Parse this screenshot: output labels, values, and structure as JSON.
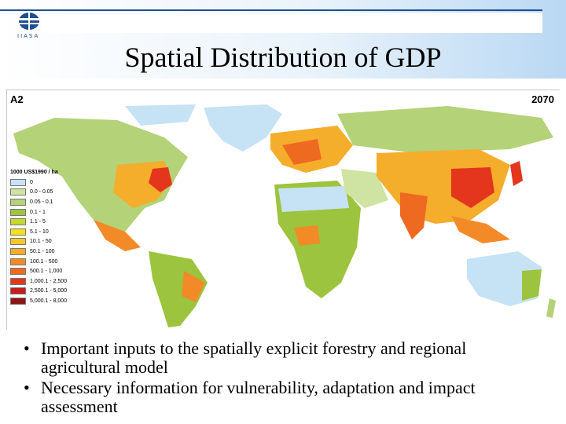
{
  "slide": {
    "title": "Spatial Distribution of GDP",
    "logo_text": "IIASA"
  },
  "map": {
    "scenario": "A2",
    "year": "2070",
    "legend_title": "1000 US$1990 / ha",
    "legend": [
      {
        "label": "0",
        "color": "#c6e2f5"
      },
      {
        "label": "0.0 - 0.05",
        "color": "#cfe3a2"
      },
      {
        "label": "0.05 - 0.1",
        "color": "#b4d277"
      },
      {
        "label": "0.1 - 1",
        "color": "#9cc43e"
      },
      {
        "label": "1.1 - 5",
        "color": "#c6d92a"
      },
      {
        "label": "5.1 - 10",
        "color": "#f3e11b"
      },
      {
        "label": "10.1 - 50",
        "color": "#f7c72a"
      },
      {
        "label": "50.1 - 100",
        "color": "#f5ad2c"
      },
      {
        "label": "100.1 - 500",
        "color": "#f38a28"
      },
      {
        "label": "500.1 - 1,000",
        "color": "#ef6a21"
      },
      {
        "label": "1,000.1 - 2,500",
        "color": "#e3361c"
      },
      {
        "label": "2,500.1 - 5,000",
        "color": "#c71b1b"
      },
      {
        "label": "5,000.1 - 8,000",
        "color": "#8f1414"
      }
    ]
  },
  "bullets": [
    "Important inputs to the spatially explicit forestry and regional agricultural model",
    "Necessary information for vulnerability, adaptation and impact assessment"
  ]
}
